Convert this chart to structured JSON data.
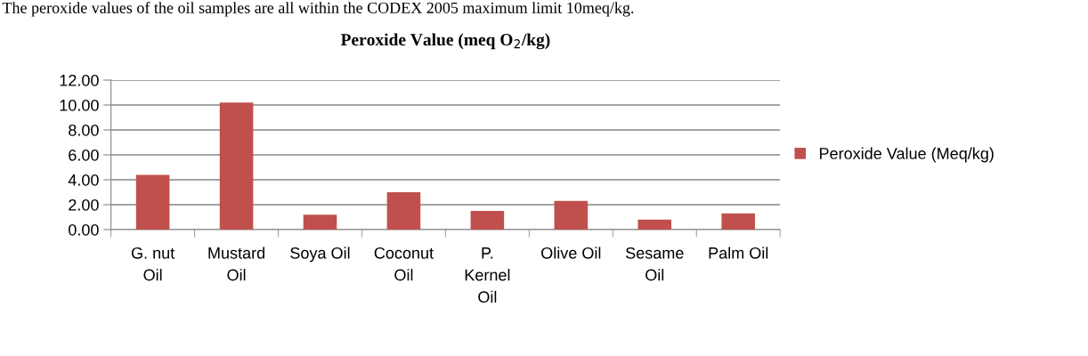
{
  "chart_data": {
    "type": "bar",
    "title": "Peroxide Value (meq O$_{2}$/kg)",
    "annotations": [
      "The peroxide values of the oil samples are all within the CODEX 2005 maximum limit 10meq/kg."
    ],
    "categories": [
      "G. nut\nOil",
      "Mustard\nOil",
      "Soya Oil",
      "Coconut\nOil",
      "P.\nKernel\nOil",
      "Olive Oil",
      "Sesame\nOil",
      "Palm Oil"
    ],
    "series": [
      {
        "name": "Peroxide Value (Meq/kg)",
        "color": "#c0504d",
        "values": [
          4.4,
          10.2,
          1.2,
          3.0,
          1.5,
          2.3,
          0.8,
          1.3
        ]
      }
    ],
    "ylim": [
      0,
      12
    ],
    "yticks": [
      {
        "value": 0,
        "label": "0.00"
      },
      {
        "value": 2,
        "label": "2.00"
      },
      {
        "value": 4,
        "label": "4.00"
      },
      {
        "value": 6,
        "label": "6.00"
      },
      {
        "value": 8,
        "label": "8.00"
      },
      {
        "value": 10,
        "label": "10.00"
      },
      {
        "value": 12,
        "label": "12.00"
      }
    ],
    "grid": "y",
    "legend": "right"
  }
}
